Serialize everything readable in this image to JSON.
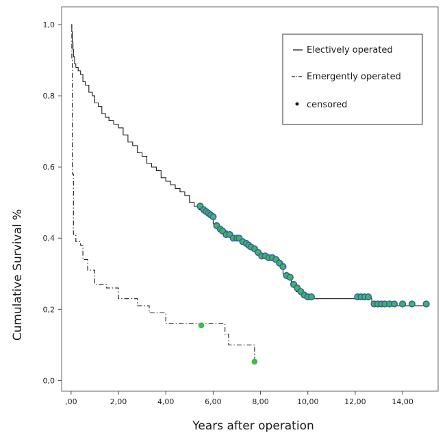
{
  "chart_data": {
    "type": "line",
    "title": "",
    "xlabel": "Years after operation",
    "ylabel": "Cumulative Survival %",
    "xlim": [
      -0.4,
      15.5
    ],
    "ylim": [
      -0.03,
      1.05
    ],
    "x_ticks": [
      0,
      2,
      4,
      6,
      8,
      10,
      12,
      14
    ],
    "x_tick_labels": [
      ",00",
      "2,00",
      "4,00",
      "6,00",
      "8,00",
      "10,00",
      "12,00",
      "14,00"
    ],
    "y_ticks": [
      0,
      0.2,
      0.4,
      0.6,
      0.8,
      1.0
    ],
    "y_tick_labels": [
      "0,0",
      "0,2",
      "0,4",
      "0,6",
      "0,8",
      "1,0"
    ],
    "grid": false,
    "legend_position": "top-right",
    "legend": {
      "elective_label": "Electively operated",
      "emergent_label": "Emergently operated",
      "censored_label": "censored"
    },
    "censor_color": "#3cba54",
    "censor_edge_color": "#3a5fb0",
    "series": [
      {
        "name": "Electively operated",
        "style": "solid",
        "x": [
          0.0,
          0.03,
          0.05,
          0.08,
          0.1,
          0.15,
          0.2,
          0.3,
          0.4,
          0.5,
          0.6,
          0.75,
          0.9,
          1.0,
          1.15,
          1.3,
          1.45,
          1.6,
          1.8,
          2.0,
          2.2,
          2.4,
          2.6,
          2.8,
          3.0,
          3.2,
          3.4,
          3.6,
          3.8,
          4.0,
          4.2,
          4.4,
          4.6,
          4.8,
          5.0,
          5.2,
          5.4,
          5.6,
          5.8,
          6.0,
          6.2,
          6.4,
          6.6,
          6.8,
          7.0,
          7.2,
          7.4,
          7.6,
          7.8,
          8.0,
          8.2,
          8.4,
          8.6,
          8.8,
          8.95,
          9.1,
          9.3,
          9.5,
          9.7,
          9.9,
          10.1,
          10.3,
          11.0,
          12.0,
          12.5,
          12.7,
          13.0,
          14.0,
          15.0
        ],
        "y": [
          1.0,
          0.98,
          0.95,
          0.93,
          0.91,
          0.89,
          0.88,
          0.87,
          0.86,
          0.84,
          0.83,
          0.81,
          0.8,
          0.78,
          0.77,
          0.75,
          0.74,
          0.73,
          0.72,
          0.71,
          0.69,
          0.67,
          0.66,
          0.64,
          0.63,
          0.61,
          0.6,
          0.59,
          0.57,
          0.56,
          0.55,
          0.54,
          0.53,
          0.52,
          0.5,
          0.49,
          0.48,
          0.47,
          0.46,
          0.44,
          0.43,
          0.42,
          0.41,
          0.4,
          0.4,
          0.39,
          0.38,
          0.37,
          0.36,
          0.35,
          0.35,
          0.35,
          0.34,
          0.33,
          0.3,
          0.29,
          0.27,
          0.25,
          0.24,
          0.23,
          0.23,
          0.23,
          0.23,
          0.23,
          0.23,
          0.21,
          0.21,
          0.21,
          0.21
        ],
        "censored_x": [
          5.45,
          5.6,
          5.7,
          5.8,
          5.9,
          6.0,
          6.15,
          6.3,
          6.4,
          6.55,
          6.7,
          6.85,
          7.0,
          7.1,
          7.25,
          7.4,
          7.5,
          7.6,
          7.75,
          7.9,
          8.05,
          8.2,
          8.35,
          8.5,
          8.65,
          8.8,
          8.95,
          9.1,
          9.25,
          9.4,
          9.55,
          9.7,
          9.85,
          10.0,
          10.15,
          12.1,
          12.25,
          12.4,
          12.55,
          12.8,
          12.95,
          13.1,
          13.25,
          13.45,
          13.65,
          14.0,
          14.4,
          15.0
        ],
        "censored_y": [
          0.49,
          0.48,
          0.475,
          0.47,
          0.465,
          0.46,
          0.435,
          0.425,
          0.42,
          0.41,
          0.41,
          0.4,
          0.4,
          0.4,
          0.39,
          0.385,
          0.38,
          0.375,
          0.37,
          0.36,
          0.35,
          0.35,
          0.345,
          0.345,
          0.34,
          0.33,
          0.32,
          0.295,
          0.29,
          0.27,
          0.26,
          0.25,
          0.24,
          0.235,
          0.235,
          0.235,
          0.235,
          0.235,
          0.235,
          0.215,
          0.215,
          0.215,
          0.215,
          0.215,
          0.215,
          0.215,
          0.215,
          0.215
        ]
      },
      {
        "name": "Emergently operated",
        "style": "dashdot",
        "x": [
          0.0,
          0.03,
          0.05,
          0.1,
          0.2,
          0.4,
          0.5,
          0.7,
          1.0,
          1.5,
          2.0,
          2.8,
          3.0,
          3.3,
          3.8,
          4.0,
          4.5,
          5.0,
          5.5,
          6.0,
          6.5,
          6.65,
          7.0,
          7.5,
          7.7,
          7.75
        ],
        "y": [
          1.0,
          0.9,
          0.58,
          0.41,
          0.39,
          0.38,
          0.34,
          0.31,
          0.27,
          0.26,
          0.23,
          0.21,
          0.21,
          0.19,
          0.19,
          0.16,
          0.16,
          0.16,
          0.16,
          0.16,
          0.13,
          0.1,
          0.1,
          0.1,
          0.1,
          0.05
        ],
        "censored_x": [
          5.5,
          7.75
        ],
        "censored_y": [
          0.155,
          0.053
        ]
      }
    ]
  }
}
